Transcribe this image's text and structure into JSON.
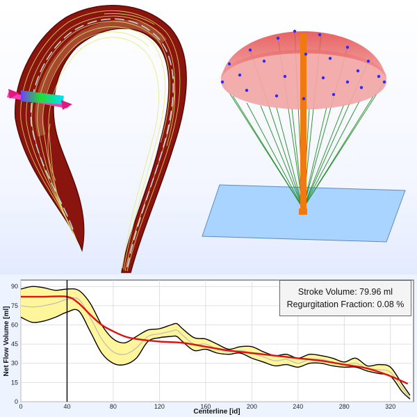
{
  "stats": {
    "stroke_volume": "Stroke Volume: 79.96 ml",
    "regurgitation_fraction": "Regurgitation Fraction: 0.08 %"
  },
  "chart_data": {
    "type": "line",
    "xlabel": "Centerline [id]",
    "ylabel": "Net Flow Volume [ml]",
    "xlim": [
      0,
      340
    ],
    "ylim": [
      0,
      95
    ],
    "xticks": [
      0,
      40,
      80,
      120,
      160,
      200,
      240,
      280,
      320
    ],
    "yticks": [
      0,
      15,
      30,
      45,
      60,
      75,
      90
    ],
    "grid": true,
    "vertical_marker_x": 40,
    "colors": {
      "upper": "#000000",
      "lower": "#000000",
      "mean": "#bbbbbb",
      "fit": "#dd1111",
      "band_fill": "#fff59a"
    },
    "series": [
      {
        "key": "upper",
        "x": [
          0,
          10,
          20,
          30,
          40,
          50,
          60,
          70,
          80,
          90,
          100,
          110,
          120,
          130,
          135,
          140,
          150,
          160,
          170,
          180,
          190,
          200,
          210,
          220,
          230,
          240,
          250,
          260,
          270,
          280,
          290,
          300,
          310,
          320,
          330,
          337
        ],
        "values": [
          88,
          90,
          89,
          87,
          88,
          87,
          77,
          60,
          49,
          46,
          51,
          56,
          57,
          60,
          61,
          57,
          50,
          49,
          45,
          41,
          43,
          43,
          39,
          36,
          37,
          34,
          37,
          36,
          34,
          31,
          34,
          28,
          29,
          27,
          14,
          5
        ]
      },
      {
        "key": "lower",
        "x": [
          0,
          10,
          20,
          30,
          40,
          50,
          60,
          70,
          80,
          90,
          100,
          110,
          120,
          130,
          135,
          140,
          150,
          160,
          170,
          180,
          190,
          200,
          210,
          220,
          230,
          240,
          250,
          260,
          270,
          280,
          290,
          300,
          310,
          320,
          330,
          337
        ],
        "values": [
          66,
          62,
          63,
          66,
          70,
          71,
          55,
          38,
          30,
          29,
          34,
          47,
          50,
          51,
          51,
          47,
          40,
          41,
          38,
          37,
          38,
          34,
          31,
          28,
          29,
          27,
          30,
          30,
          28,
          27,
          27,
          24,
          22,
          20,
          8,
          2
        ]
      },
      {
        "key": "mean",
        "x": [
          0,
          10,
          20,
          30,
          40,
          50,
          60,
          70,
          80,
          90,
          100,
          110,
          120,
          130,
          135,
          140,
          150,
          160,
          170,
          180,
          190,
          200,
          210,
          220,
          230,
          240,
          250,
          260,
          270,
          280,
          290,
          300,
          310,
          320,
          330,
          337
        ],
        "values": [
          75,
          74,
          75,
          77,
          80,
          80,
          66,
          49,
          39,
          37,
          42,
          51,
          53,
          55,
          56,
          52,
          45,
          45,
          41,
          39,
          40,
          38,
          35,
          32,
          33,
          30,
          33,
          33,
          31,
          29,
          30,
          26,
          25,
          23,
          11,
          3
        ]
      },
      {
        "key": "fit",
        "x": [
          0,
          20,
          40,
          50,
          60,
          70,
          80,
          90,
          100,
          120,
          140,
          160,
          180,
          200,
          220,
          240,
          260,
          280,
          300,
          320,
          335
        ],
        "values": [
          82,
          82,
          82,
          77,
          68,
          60,
          55,
          51,
          49,
          47,
          46,
          43,
          40,
          38,
          36,
          34,
          32,
          29,
          26,
          20,
          14
        ]
      }
    ]
  }
}
